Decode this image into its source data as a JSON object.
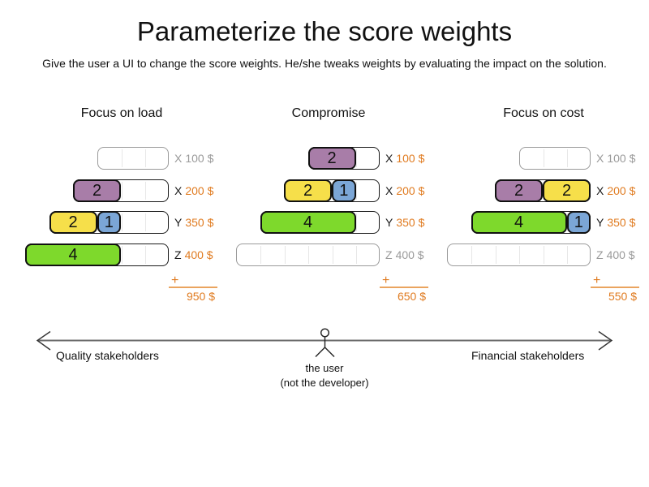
{
  "title": "Parameterize the score weights",
  "subtitle": "Give the user a UI to change the score weights. He/she tweaks weights by evaluating the impact on the solution.",
  "plus_sign": "+",
  "colors": {
    "purple": "#a87da8",
    "yellow": "#f6df4a",
    "blue": "#7ba6d6",
    "green": "#7ed92c",
    "orange": "#e07b20",
    "inactive_gray": "#9a9a9a",
    "axis_line_gray": "#666666"
  },
  "panels": [
    {
      "title": "Focus on load",
      "rows": [
        {
          "cells": 3,
          "blocks": [],
          "label_letter": "X",
          "label_price": "100 $"
        },
        {
          "cells": 4,
          "blocks": [
            {
              "value": "2",
              "color": "purple",
              "span": 2
            }
          ],
          "label_letter": "X",
          "label_price": "200 $"
        },
        {
          "cells": 5,
          "blocks": [
            {
              "value": "2",
              "color": "yellow",
              "span": 2
            },
            {
              "value": "1",
              "color": "blue",
              "span": 1
            }
          ],
          "label_letter": "Y",
          "label_price": "350 $"
        },
        {
          "cells": 6,
          "blocks": [
            {
              "value": "4",
              "color": "green",
              "span": 4
            }
          ],
          "label_letter": "Z",
          "label_price": "400 $"
        }
      ],
      "sum_label": "950 $"
    },
    {
      "title": "Compromise",
      "rows": [
        {
          "cells": 3,
          "blocks": [
            {
              "value": "2",
              "color": "purple",
              "span": 2
            }
          ],
          "label_letter": "X",
          "label_price": "100 $"
        },
        {
          "cells": 4,
          "blocks": [
            {
              "value": "2",
              "color": "yellow",
              "span": 2
            },
            {
              "value": "1",
              "color": "blue",
              "span": 1
            }
          ],
          "label_letter": "X",
          "label_price": "200 $"
        },
        {
          "cells": 5,
          "blocks": [
            {
              "value": "4",
              "color": "green",
              "span": 4
            }
          ],
          "label_letter": "Y",
          "label_price": "350 $"
        },
        {
          "cells": 6,
          "blocks": [],
          "label_letter": "Z",
          "label_price": "400 $"
        }
      ],
      "sum_label": "650 $"
    },
    {
      "title": "Focus on cost",
      "rows": [
        {
          "cells": 3,
          "blocks": [],
          "label_letter": "X",
          "label_price": "100 $"
        },
        {
          "cells": 4,
          "blocks": [
            {
              "value": "2",
              "color": "purple",
              "span": 2
            },
            {
              "value": "2",
              "color": "yellow",
              "span": 2
            }
          ],
          "label_letter": "X",
          "label_price": "200 $"
        },
        {
          "cells": 5,
          "blocks": [
            {
              "value": "4",
              "color": "green",
              "span": 4
            },
            {
              "value": "1",
              "color": "blue",
              "span": 1
            }
          ],
          "label_letter": "Y",
          "label_price": "350 $"
        },
        {
          "cells": 6,
          "blocks": [],
          "label_letter": "Z",
          "label_price": "400 $"
        }
      ],
      "sum_label": "550 $"
    }
  ],
  "axis": {
    "left_label": "Quality stakeholders",
    "right_label": "Financial stakeholders",
    "center_label_line1": "the user",
    "center_label_line2": "(not the developer)"
  }
}
